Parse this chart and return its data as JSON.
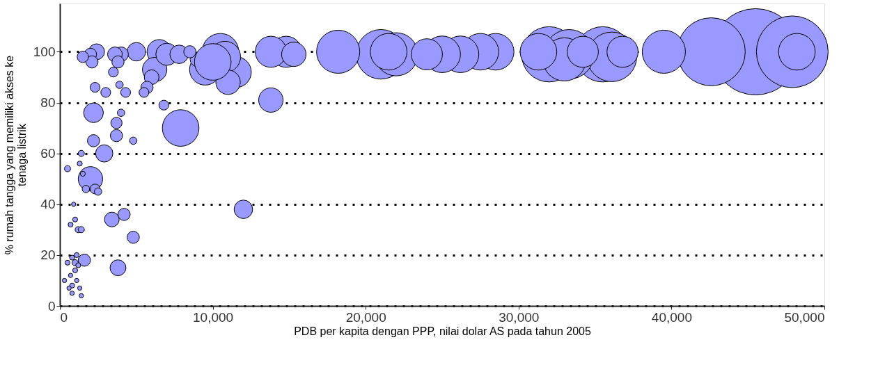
{
  "chart_data": {
    "type": "bubble",
    "xlabel": "PDB per kapita dengan PPP, nilai dolar AS pada tahun 2005",
    "ylabel": "% rumah tangga yang memiliki akses ke tenaga listrik",
    "xlim": [
      0,
      50000
    ],
    "xticks": [
      {
        "value": 0,
        "label": "0"
      },
      {
        "value": 10000,
        "label": "10,000"
      },
      {
        "value": 20000,
        "label": "20,000"
      },
      {
        "value": 30000,
        "label": "30,000"
      },
      {
        "value": 40000,
        "label": "40,000"
      },
      {
        "value": 50000,
        "label": "50,000"
      }
    ],
    "ylim": [
      0,
      119
    ],
    "yticks": [
      0,
      20,
      40,
      60,
      80,
      100
    ],
    "grid": "y",
    "series": [
      {
        "color": "#9999ff",
        "x": [
          45500,
          47900,
          42600,
          32000,
          35500,
          21000,
          36100,
          33300,
          39500,
          18200,
          33000,
          22000,
          48200,
          31300,
          28500,
          27500,
          26200,
          25000,
          21500,
          10500,
          7900,
          14800,
          13800,
          11500,
          10800,
          9500,
          34200,
          24000,
          36800,
          15300,
          13800,
          11000,
          6500,
          6200,
          2000,
          7000,
          2200,
          12000,
          7800,
          5000,
          2900,
          3800,
          2400,
          3400,
          4000,
          3600,
          9000,
          3800,
          6000,
          8500,
          2000,
          2100,
          2200,
          3700,
          4200,
          4800,
          1600,
          5700,
          1500,
          3700,
          6800,
          5500,
          4300,
          3000,
          2300,
          3500,
          2300,
          4000,
          3900,
          4800,
          2500,
          1700,
          1400,
          500,
          1200,
          1400,
          1000,
          1300,
          1500,
          1000,
          700,
          1100,
          800,
          500,
          1200,
          1000,
          800,
          900,
          700,
          1100,
          600,
          800,
          1300,
          300,
          1400,
          10000
        ],
        "values": [
          100,
          100,
          100,
          99,
          99,
          99,
          98,
          99,
          100,
          100,
          97,
          99,
          100,
          100,
          100,
          100,
          99,
          99,
          100,
          100,
          70,
          100,
          100,
          92,
          98,
          93,
          100,
          99,
          100,
          99,
          81,
          88,
          100,
          93,
          50,
          99,
          76,
          38,
          99,
          100,
          60,
          15,
          100,
          34,
          99,
          99,
          97,
          96,
          90,
          100,
          99,
          96,
          65,
          67,
          36,
          27,
          18,
          86,
          98,
          72,
          79,
          84,
          84,
          84,
          86,
          92,
          46,
          76,
          87,
          65,
          45,
          46,
          60,
          54,
          30,
          30,
          34,
          56,
          52,
          17,
          32,
          20,
          19,
          17,
          16,
          14,
          8,
          40,
          12,
          10,
          7,
          5,
          7,
          10,
          4,
          96
        ],
        "sizes": [
          1,
          0.69,
          0.62,
          0.41,
          0.41,
          0.33,
          0.33,
          0.33,
          0.25,
          0.25,
          0.25,
          0.25,
          0.18,
          0.18,
          0.18,
          0.18,
          0.18,
          0.18,
          0.18,
          0.18,
          0.18,
          0.13,
          0.13,
          0.13,
          0.13,
          0.13,
          0.13,
          0.13,
          0.13,
          0.08,
          0.08,
          0.08,
          0.08,
          0.08,
          0.08,
          0.066,
          0.052,
          0.046,
          0.046,
          0.046,
          0.04,
          0.034,
          0.034,
          0.029,
          0.029,
          0.029,
          0.029,
          0.02,
          0.029,
          0.02,
          0.02,
          0.02,
          0.02,
          0.02,
          0.02,
          0.02,
          0.02,
          0.02,
          0.017,
          0.017,
          0.013,
          0.013,
          0.013,
          0.013,
          0.013,
          0.013,
          0.013,
          0.0073,
          0.0073,
          0.0073,
          0.0073,
          0.0073,
          0.0051,
          0.0051,
          0.0051,
          0.0051,
          0.0033,
          0.0033,
          0.0033,
          0.0051,
          0.0033,
          0.0033,
          0.0033,
          0.0033,
          0.0033,
          0.0033,
          0.0033,
          0.0025,
          0.0025,
          0.0025,
          0.0025,
          0.0025,
          0.0025,
          0.0025,
          0.0025,
          0.18
        ]
      }
    ]
  }
}
